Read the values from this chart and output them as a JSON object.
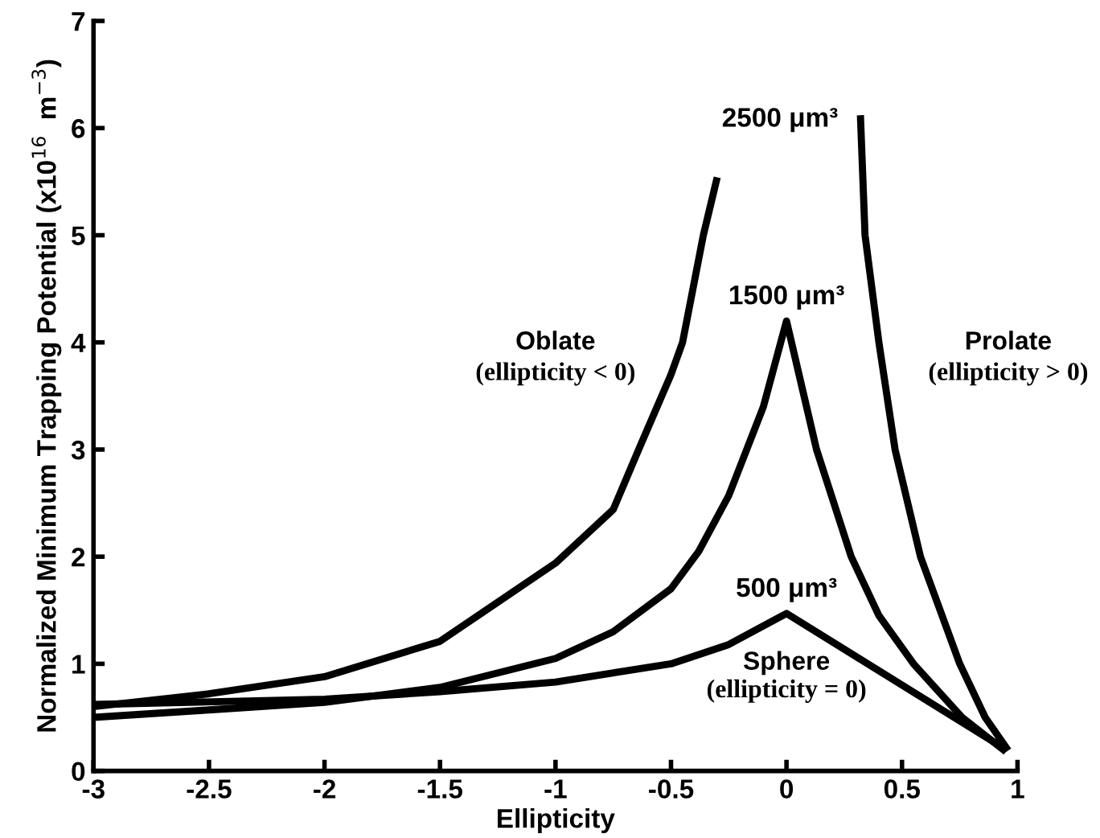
{
  "chart_data": {
    "type": "line",
    "xlabel": "Ellipticity",
    "ylabel": "Normalized Minimum Trapping Potential (x10$^{16}$  m$^{−3}$)",
    "series": [
      {
        "name": "2500 μm³",
        "color": "#000000",
        "x": [
          -3,
          -2.5,
          -2,
          -1.5,
          -1,
          -0.75,
          -0.64,
          -0.5,
          -0.45,
          -0.36,
          -0.3,
          0,
          0.32,
          0.34,
          0.4,
          0.47,
          0.58,
          0.75,
          0.86,
          0.96
        ],
        "values": [
          0.6,
          0.72,
          0.88,
          1.21,
          1.94,
          2.44,
          3.0,
          3.7,
          4.0,
          5.0,
          5.54,
          null,
          6.12,
          5.0,
          4.0,
          3.0,
          2.0,
          1.0,
          0.5,
          0.19
        ]
      },
      {
        "name": "1500 μm³",
        "color": "#000000",
        "x": [
          -3,
          -2.5,
          -2,
          -1.5,
          -1,
          -0.75,
          -0.5,
          -0.38,
          -0.25,
          -0.1,
          0,
          0.13,
          0.28,
          0.4,
          0.55,
          0.76,
          0.95
        ],
        "values": [
          0.5,
          0.57,
          0.64,
          0.78,
          1.05,
          1.3,
          1.7,
          2.05,
          2.57,
          3.4,
          4.2,
          3.0,
          2.0,
          1.45,
          1.0,
          0.5,
          0.18
        ]
      },
      {
        "name": "500 μm³",
        "color": "#000000",
        "x": [
          -3,
          -2,
          -1.5,
          -1,
          -0.5,
          -0.25,
          0,
          0.95
        ],
        "values": [
          0.62,
          0.67,
          0.74,
          0.83,
          1.0,
          1.18,
          1.47,
          0.2
        ]
      }
    ],
    "annotations": [
      "Oblate",
      "(ellipticity < 0)",
      "Prolate",
      "(ellipticity > 0)",
      "Sphere",
      "(ellipticity = 0)"
    ],
    "xlim": [
      -3,
      1
    ],
    "xticks": [
      -3,
      -2.5,
      -2,
      -1.5,
      -1,
      -0.5,
      0,
      0.5,
      1
    ],
    "ylim": [
      0,
      7
    ],
    "yticks": [
      0,
      1,
      2,
      3,
      4,
      5,
      6,
      7
    ],
    "grid": false,
    "legend": false,
    "marker": "none",
    "line_style": "solid"
  }
}
